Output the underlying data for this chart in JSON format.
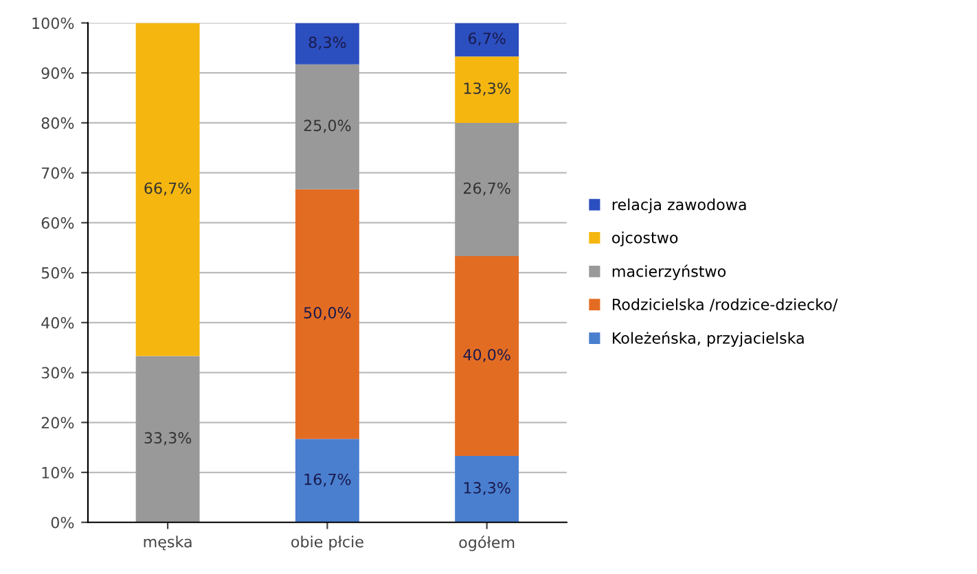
{
  "chart_data": {
    "type": "bar",
    "stacked": true,
    "categories": [
      "męska",
      "obie płcie",
      "ogółem"
    ],
    "series": [
      {
        "name": "Koleżeńska, przyjacielska",
        "color": "#4a7fd0",
        "values": [
          null,
          16.7,
          13.3
        ],
        "value_labels": [
          null,
          "16,7%",
          "13,3%"
        ]
      },
      {
        "name": "Rodzicielska /rodzice-dziecko/",
        "color": "#e36c23",
        "values": [
          null,
          50.0,
          40.0
        ],
        "value_labels": [
          null,
          "50,0%",
          "40,0%"
        ]
      },
      {
        "name": "macierzyństwo",
        "color": "#999999",
        "values": [
          33.3,
          25.0,
          26.7
        ],
        "value_labels": [
          "33,3%",
          "25,0%",
          "26,7%"
        ]
      },
      {
        "name": "ojcostwo",
        "color": "#f5b60f",
        "values": [
          66.7,
          null,
          13.3
        ],
        "value_labels": [
          "66,7%",
          null,
          "13,3%"
        ]
      },
      {
        "name": "relacja zawodowa",
        "color": "#2c4fbf",
        "values": [
          null,
          8.3,
          6.7
        ],
        "value_labels": [
          null,
          "8,3%",
          "6,7%"
        ]
      }
    ],
    "ylim": [
      0,
      100
    ],
    "yticks": [
      {
        "value": 0,
        "label": "0%"
      },
      {
        "value": 10,
        "label": "10%"
      },
      {
        "value": 20,
        "label": "20%"
      },
      {
        "value": 30,
        "label": "30%"
      },
      {
        "value": 40,
        "label": "40%"
      },
      {
        "value": 50,
        "label": "50%"
      },
      {
        "value": 60,
        "label": "60%"
      },
      {
        "value": 70,
        "label": "70%"
      },
      {
        "value": 80,
        "label": "80%"
      },
      {
        "value": 90,
        "label": "90%"
      },
      {
        "value": 100,
        "label": "100%"
      }
    ],
    "grid": "y",
    "legend": "right"
  }
}
